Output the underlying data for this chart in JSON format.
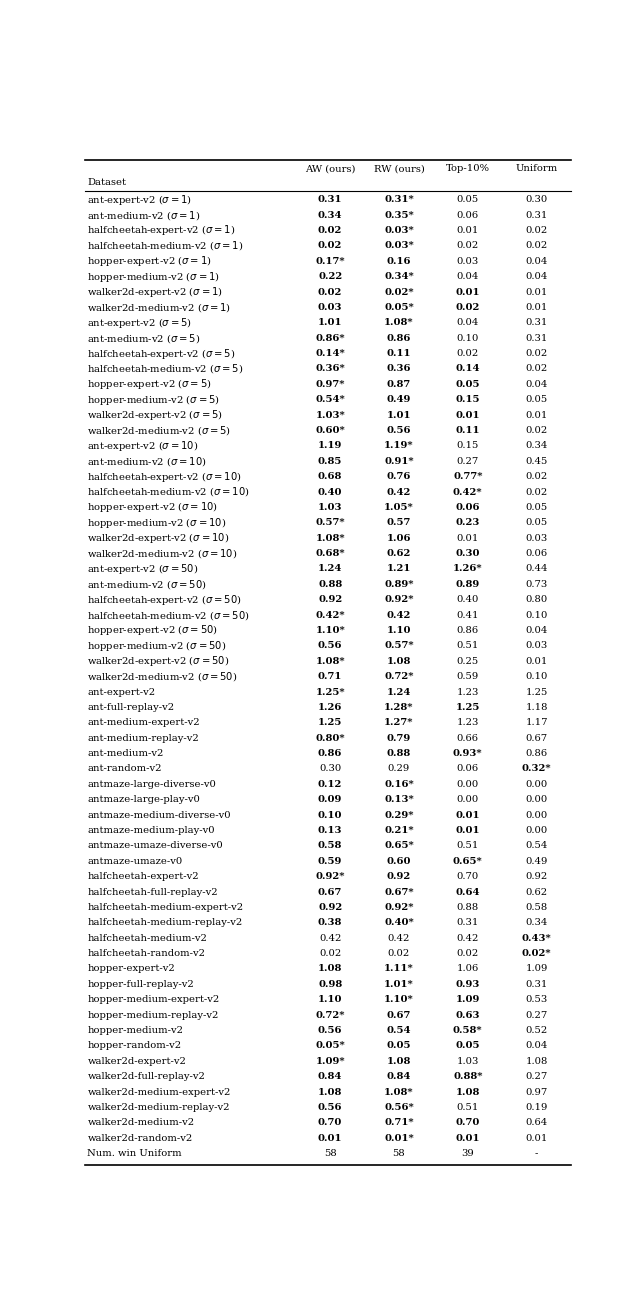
{
  "columns": [
    "AW (ours)",
    "RW (ours)",
    "Top-10%",
    "Uniform"
  ],
  "header_label": "Dataset",
  "rows": [
    [
      "ant-expert-v2 ($\\sigma = 1$)",
      "**0.31**",
      "**0.31***",
      "0.05",
      "0.30"
    ],
    [
      "ant-medium-v2 ($\\sigma = 1$)",
      "**0.34**",
      "**0.35***",
      "0.06",
      "0.31"
    ],
    [
      "halfcheetah-expert-v2 ($\\sigma = 1$)",
      "**0.02**",
      "**0.03***",
      "0.01",
      "0.02"
    ],
    [
      "halfcheetah-medium-v2 ($\\sigma = 1$)",
      "**0.02**",
      "**0.03***",
      "0.02",
      "0.02"
    ],
    [
      "hopper-expert-v2 ($\\sigma = 1$)",
      "**0.17***",
      "**0.16**",
      "0.03",
      "0.04"
    ],
    [
      "hopper-medium-v2 ($\\sigma = 1$)",
      "**0.22**",
      "**0.34***",
      "0.04",
      "0.04"
    ],
    [
      "walker2d-expert-v2 ($\\sigma = 1$)",
      "**0.02**",
      "**0.02***",
      "**0.01**",
      "0.01"
    ],
    [
      "walker2d-medium-v2 ($\\sigma = 1$)",
      "**0.03**",
      "**0.05***",
      "**0.02**",
      "0.01"
    ],
    [
      "ant-expert-v2 ($\\sigma = 5$)",
      "**1.01**",
      "**1.08***",
      "0.04",
      "0.31"
    ],
    [
      "ant-medium-v2 ($\\sigma = 5$)",
      "**0.86***",
      "**0.86**",
      "0.10",
      "0.31"
    ],
    [
      "halfcheetah-expert-v2 ($\\sigma = 5$)",
      "**0.14***",
      "**0.11**",
      "0.02",
      "0.02"
    ],
    [
      "halfcheetah-medium-v2 ($\\sigma = 5$)",
      "**0.36***",
      "**0.36**",
      "**0.14**",
      "0.02"
    ],
    [
      "hopper-expert-v2 ($\\sigma = 5$)",
      "**0.97***",
      "**0.87**",
      "**0.05**",
      "0.04"
    ],
    [
      "hopper-medium-v2 ($\\sigma = 5$)",
      "**0.54***",
      "**0.49**",
      "**0.15**",
      "0.05"
    ],
    [
      "walker2d-expert-v2 ($\\sigma = 5$)",
      "**1.03***",
      "**1.01**",
      "**0.01**",
      "0.01"
    ],
    [
      "walker2d-medium-v2 ($\\sigma = 5$)",
      "**0.60***",
      "**0.56**",
      "**0.11**",
      "0.02"
    ],
    [
      "ant-expert-v2 ($\\sigma = 10$)",
      "**1.19**",
      "**1.19***",
      "0.15",
      "0.34"
    ],
    [
      "ant-medium-v2 ($\\sigma = 10$)",
      "**0.85**",
      "**0.91***",
      "0.27",
      "0.45"
    ],
    [
      "halfcheetah-expert-v2 ($\\sigma = 10$)",
      "**0.68**",
      "**0.76**",
      "**0.77***",
      "0.02"
    ],
    [
      "halfcheetah-medium-v2 ($\\sigma = 10$)",
      "**0.40**",
      "**0.42**",
      "**0.42***",
      "0.02"
    ],
    [
      "hopper-expert-v2 ($\\sigma = 10$)",
      "**1.03**",
      "**1.05***",
      "**0.06**",
      "0.05"
    ],
    [
      "hopper-medium-v2 ($\\sigma = 10$)",
      "**0.57***",
      "**0.57**",
      "**0.23**",
      "0.05"
    ],
    [
      "walker2d-expert-v2 ($\\sigma = 10$)",
      "**1.08***",
      "**1.06**",
      "0.01",
      "0.03"
    ],
    [
      "walker2d-medium-v2 ($\\sigma = 10$)",
      "**0.68***",
      "**0.62**",
      "**0.30**",
      "0.06"
    ],
    [
      "ant-expert-v2 ($\\sigma = 50$)",
      "**1.24**",
      "**1.21**",
      "**1.26***",
      "0.44"
    ],
    [
      "ant-medium-v2 ($\\sigma = 50$)",
      "**0.88**",
      "**0.89***",
      "**0.89**",
      "0.73"
    ],
    [
      "halfcheetah-expert-v2 ($\\sigma = 50$)",
      "**0.92**",
      "**0.92***",
      "0.40",
      "0.80"
    ],
    [
      "halfcheetah-medium-v2 ($\\sigma = 50$)",
      "**0.42***",
      "**0.42**",
      "0.41",
      "0.10"
    ],
    [
      "hopper-expert-v2 ($\\sigma = 50$)",
      "**1.10***",
      "**1.10**",
      "0.86",
      "0.04"
    ],
    [
      "hopper-medium-v2 ($\\sigma = 50$)",
      "**0.56**",
      "**0.57***",
      "0.51",
      "0.03"
    ],
    [
      "walker2d-expert-v2 ($\\sigma = 50$)",
      "**1.08***",
      "**1.08**",
      "0.25",
      "0.01"
    ],
    [
      "walker2d-medium-v2 ($\\sigma = 50$)",
      "**0.71**",
      "**0.72***",
      "0.59",
      "0.10"
    ],
    [
      "ant-expert-v2",
      "**1.25***",
      "**1.24**",
      "1.23",
      "1.25"
    ],
    [
      "ant-full-replay-v2",
      "**1.26**",
      "**1.28***",
      "**1.25**",
      "1.18"
    ],
    [
      "ant-medium-expert-v2",
      "**1.25**",
      "**1.27***",
      "1.23",
      "1.17"
    ],
    [
      "ant-medium-replay-v2",
      "**0.80***",
      "**0.79**",
      "0.66",
      "0.67"
    ],
    [
      "ant-medium-v2",
      "**0.86**",
      "**0.88**",
      "**0.93***",
      "0.86"
    ],
    [
      "ant-random-v2",
      "0.30",
      "0.29",
      "0.06",
      "**0.32***"
    ],
    [
      "antmaze-large-diverse-v0",
      "**0.12**",
      "**0.16***",
      "0.00",
      "0.00"
    ],
    [
      "antmaze-large-play-v0",
      "**0.09**",
      "**0.13***",
      "0.00",
      "0.00"
    ],
    [
      "antmaze-medium-diverse-v0",
      "**0.10**",
      "**0.29***",
      "**0.01**",
      "0.00"
    ],
    [
      "antmaze-medium-play-v0",
      "**0.13**",
      "**0.21***",
      "**0.01**",
      "0.00"
    ],
    [
      "antmaze-umaze-diverse-v0",
      "**0.58**",
      "**0.65***",
      "0.51",
      "0.54"
    ],
    [
      "antmaze-umaze-v0",
      "**0.59**",
      "**0.60**",
      "**0.65***",
      "0.49"
    ],
    [
      "halfcheetah-expert-v2",
      "**0.92***",
      "**0.92**",
      "0.70",
      "0.92"
    ],
    [
      "halfcheetah-full-replay-v2",
      "**0.67**",
      "**0.67***",
      "**0.64**",
      "0.62"
    ],
    [
      "halfcheetah-medium-expert-v2",
      "**0.92**",
      "**0.92***",
      "0.88",
      "0.58"
    ],
    [
      "halfcheetah-medium-replay-v2",
      "**0.38**",
      "**0.40***",
      "0.31",
      "0.34"
    ],
    [
      "halfcheetah-medium-v2",
      "0.42",
      "0.42",
      "0.42",
      "**0.43***"
    ],
    [
      "halfcheetah-random-v2",
      "0.02",
      "0.02",
      "0.02",
      "**0.02***"
    ],
    [
      "hopper-expert-v2",
      "**1.08**",
      "**1.11***",
      "1.06",
      "1.09"
    ],
    [
      "hopper-full-replay-v2",
      "**0.98**",
      "**1.01***",
      "**0.93**",
      "0.31"
    ],
    [
      "hopper-medium-expert-v2",
      "**1.10**",
      "**1.10***",
      "**1.09**",
      "0.53"
    ],
    [
      "hopper-medium-replay-v2",
      "**0.72***",
      "**0.67**",
      "**0.63**",
      "0.27"
    ],
    [
      "hopper-medium-v2",
      "**0.56**",
      "**0.54**",
      "**0.58***",
      "0.52"
    ],
    [
      "hopper-random-v2",
      "**0.05***",
      "**0.05**",
      "**0.05**",
      "0.04"
    ],
    [
      "walker2d-expert-v2",
      "**1.09***",
      "**1.08**",
      "1.03",
      "1.08"
    ],
    [
      "walker2d-full-replay-v2",
      "**0.84**",
      "**0.84**",
      "**0.88***",
      "0.27"
    ],
    [
      "walker2d-medium-expert-v2",
      "**1.08**",
      "**1.08***",
      "**1.08**",
      "0.97"
    ],
    [
      "walker2d-medium-replay-v2",
      "**0.56**",
      "**0.56***",
      "0.51",
      "0.19"
    ],
    [
      "walker2d-medium-v2",
      "**0.70**",
      "**0.71***",
      "**0.70**",
      "0.64"
    ],
    [
      "walker2d-random-v2",
      "**0.01**",
      "**0.01***",
      "**0.01**",
      "0.01"
    ],
    [
      "Num. win Uniform",
      "58",
      "58",
      "39",
      "-"
    ]
  ]
}
